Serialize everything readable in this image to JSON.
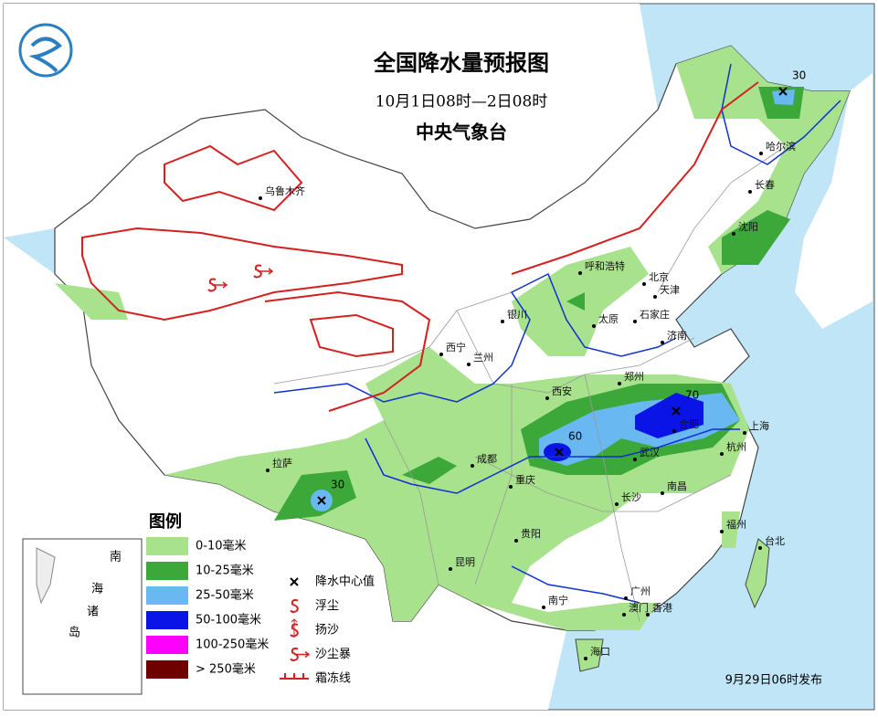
{
  "header": {
    "title": "全国降水量预报图",
    "subtitle": "10月1日08时—2日08时",
    "issuer": "中央气象台"
  },
  "cities": [
    "乌鲁木齐",
    "哈尔滨",
    "长春",
    "沈阳",
    "呼和浩特",
    "北京",
    "天津",
    "石家庄",
    "太原",
    "银川",
    "西宁",
    "兰州",
    "济南",
    "郑州",
    "西安",
    "合肥",
    "上海",
    "杭州",
    "武汉",
    "成都",
    "重庆",
    "拉萨",
    "长沙",
    "南昌",
    "贵阳",
    "昆明",
    "福州",
    "台北",
    "南宁",
    "广州",
    "澳门",
    "香港",
    "海口"
  ],
  "precipitation_centers": [
    {
      "value": 30
    },
    {
      "value": 70
    },
    {
      "value": 60
    },
    {
      "value": 30
    }
  ],
  "legend": {
    "title": "图例",
    "ranges": [
      {
        "label": "0-10毫米",
        "color": "#a8e28c"
      },
      {
        "label": "10-25毫米",
        "color": "#3ca83a"
      },
      {
        "label": "25-50毫米",
        "color": "#6ab8f2"
      },
      {
        "label": "50-100毫米",
        "color": "#0a14e6"
      },
      {
        "label": "100-250毫米",
        "color": "#ff00ff"
      },
      {
        "label": "> 250毫米",
        "color": "#700000"
      }
    ],
    "symbols": [
      "降水中心值",
      "浮尘",
      "扬沙",
      "沙尘暴",
      "霜冻线"
    ]
  },
  "inset_labels": [
    "南",
    "海",
    "诸",
    "岛"
  ],
  "footer": "9月29日06时发布"
}
